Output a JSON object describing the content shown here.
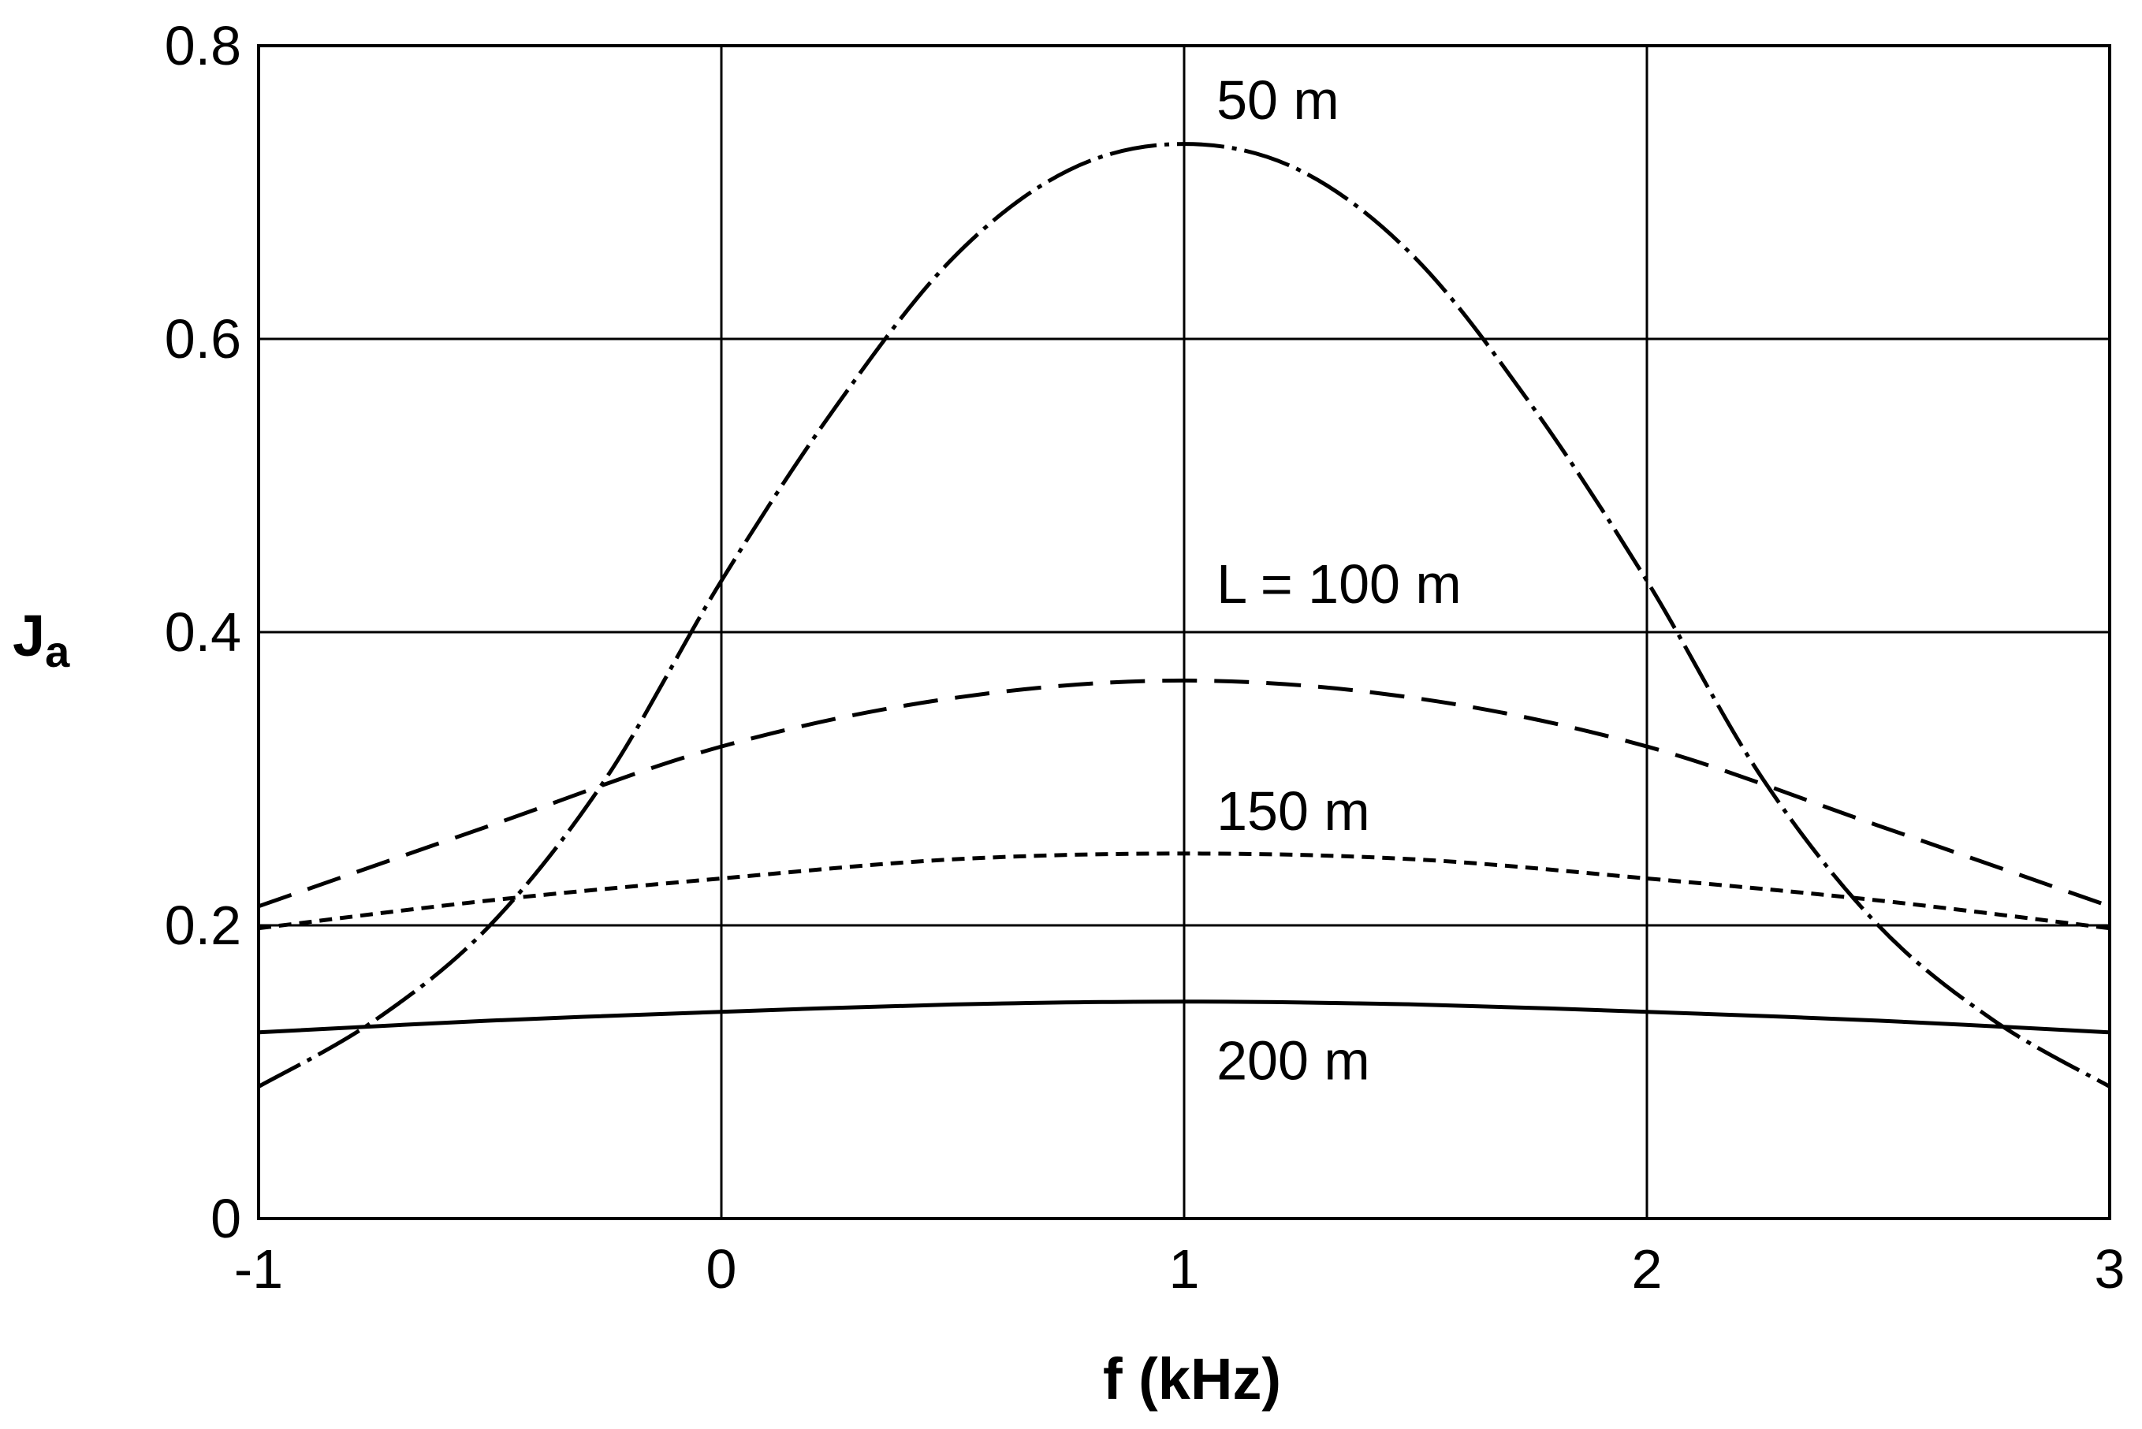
{
  "chart_data": {
    "type": "line",
    "xlabel": "f (kHz)",
    "ylabel": "Ja",
    "ylabel_main": "J",
    "ylabel_sub": "a",
    "xlim": [
      -1,
      3
    ],
    "ylim": [
      0,
      0.8
    ],
    "x_ticks": [
      -1,
      0,
      1,
      2,
      3
    ],
    "x_tick_labels": [
      "-1",
      "0",
      "1",
      "2",
      "3"
    ],
    "y_ticks": [
      0,
      0.2,
      0.4,
      0.6,
      0.8
    ],
    "y_tick_labels": [
      "0",
      "0.2",
      "0.4",
      "0.6",
      "0.8"
    ],
    "grid": true,
    "series": [
      {
        "name": "50 m",
        "line_style": "dash-dot",
        "x": [
          -1,
          -0.75,
          -0.5,
          -0.25,
          0,
          0.25,
          0.5,
          0.75,
          1,
          1.25,
          1.5,
          1.75,
          2,
          2.25,
          2.5,
          2.75,
          3
        ],
        "y": [
          0.09,
          0.135,
          0.2,
          0.3,
          0.435,
          0.555,
          0.655,
          0.715,
          0.733,
          0.715,
          0.655,
          0.555,
          0.435,
          0.3,
          0.2,
          0.135,
          0.09
        ]
      },
      {
        "name": "L = 100 m",
        "line_style": "dashed",
        "x": [
          -1,
          -0.5,
          0,
          0.5,
          1,
          1.5,
          2,
          2.5,
          3
        ],
        "y": [
          0.213,
          0.268,
          0.322,
          0.355,
          0.367,
          0.355,
          0.322,
          0.268,
          0.213
        ],
        "label": "L = 100 m"
      },
      {
        "name": "150 m",
        "line_style": "short-dash",
        "x": [
          -1,
          -0.5,
          0,
          0.5,
          1,
          1.5,
          2,
          2.5,
          3
        ],
        "y": [
          0.198,
          0.217,
          0.232,
          0.245,
          0.249,
          0.245,
          0.232,
          0.217,
          0.198
        ]
      },
      {
        "name": "200 m",
        "line_style": "solid",
        "x": [
          -1,
          -0.5,
          0,
          0.5,
          1,
          1.5,
          2,
          2.5,
          3
        ],
        "y": [
          0.127,
          0.135,
          0.141,
          0.146,
          0.148,
          0.146,
          0.141,
          0.135,
          0.127
        ]
      }
    ],
    "curve_labels": [
      {
        "text": "50 m",
        "x": 1.07,
        "y": 0.75
      },
      {
        "text": "L = 100 m",
        "x": 1.07,
        "y": 0.42
      },
      {
        "text": "150 m",
        "x": 1.07,
        "y": 0.265
      },
      {
        "text": "200 m",
        "x": 1.07,
        "y": 0.095
      }
    ]
  }
}
